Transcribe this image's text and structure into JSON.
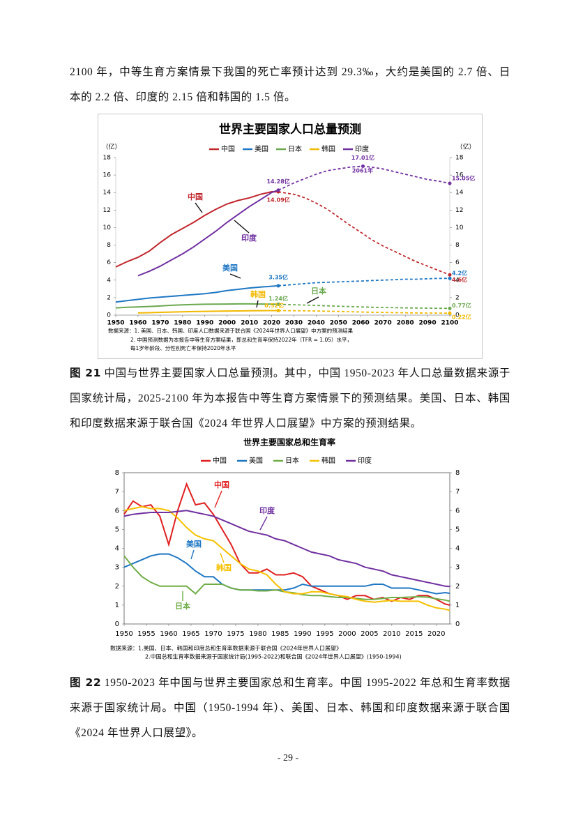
{
  "intro": "2100 年，中等生育方案情景下我国的死亡率预计达到 29.3‰，大约是美国的 2.7 倍、日本的 2.2 倍、印度的 2.15 倍和韩国的 1.5 倍。",
  "chart_data": [
    {
      "type": "line",
      "title": "世界主要国家人口总量预测",
      "ylabel": "（亿）",
      "y2label": "（亿）",
      "x": [
        1950,
        1955,
        1960,
        1965,
        1970,
        1975,
        1980,
        1985,
        1990,
        1995,
        2000,
        2005,
        2010,
        2015,
        2020,
        2023,
        2025,
        2030,
        2035,
        2040,
        2045,
        2050,
        2055,
        2061,
        2065,
        2070,
        2075,
        2080,
        2085,
        2090,
        2095,
        2100
      ],
      "xlim": [
        1950,
        2100
      ],
      "xticks": [
        1950,
        1960,
        1970,
        1980,
        1990,
        2000,
        2010,
        2020,
        2030,
        2040,
        2050,
        2060,
        2070,
        2080,
        2090,
        2100
      ],
      "ylim": [
        0,
        18
      ],
      "yticks": [
        0,
        2,
        4,
        6,
        8,
        10,
        12,
        14,
        16,
        18
      ],
      "y2lim": [
        0,
        18
      ],
      "y2ticks": [
        0,
        2,
        4,
        6,
        8,
        10,
        12,
        14,
        16,
        18
      ],
      "grid": false,
      "dashed_from": 2023,
      "series": [
        {
          "name": "中国",
          "color": "#c0272d",
          "values": [
            5.5,
            6.1,
            6.6,
            7.3,
            8.3,
            9.2,
            9.9,
            10.6,
            11.4,
            12.1,
            12.7,
            13.1,
            13.4,
            13.8,
            14.1,
            14.09,
            14.0,
            13.8,
            13.4,
            12.8,
            12.1,
            11.2,
            10.3,
            9.3,
            8.6,
            7.9,
            7.3,
            6.7,
            6.1,
            5.6,
            5.1,
            4.6
          ],
          "value_labels": [
            null,
            null,
            null,
            null,
            null,
            null,
            null,
            null,
            null,
            null,
            null,
            null,
            null,
            null,
            null,
            "14.09亿",
            null,
            null,
            null,
            null,
            null,
            null,
            null,
            null,
            null,
            null,
            null,
            null,
            null,
            null,
            null,
            "4.6亿"
          ]
        },
        {
          "name": "美国",
          "color": "#1f77c4",
          "values": [
            1.5,
            1.65,
            1.8,
            1.95,
            2.05,
            2.15,
            2.25,
            2.35,
            2.45,
            2.6,
            2.8,
            2.95,
            3.1,
            3.2,
            3.3,
            3.35,
            3.4,
            3.5,
            3.6,
            3.7,
            3.75,
            3.8,
            3.85,
            3.9,
            3.95,
            4.0,
            4.05,
            4.1,
            4.1,
            4.15,
            4.2,
            4.2
          ],
          "value_labels": [
            null,
            null,
            null,
            null,
            null,
            null,
            null,
            null,
            null,
            null,
            null,
            null,
            null,
            null,
            null,
            "3.35亿",
            null,
            null,
            null,
            null,
            null,
            null,
            null,
            null,
            null,
            null,
            null,
            null,
            null,
            null,
            null,
            "4.2亿"
          ]
        },
        {
          "name": "日本",
          "color": "#6aa84f",
          "values": [
            0.83,
            0.9,
            0.94,
            0.99,
            1.04,
            1.12,
            1.17,
            1.21,
            1.24,
            1.26,
            1.27,
            1.28,
            1.28,
            1.27,
            1.26,
            1.24,
            1.22,
            1.19,
            1.15,
            1.11,
            1.06,
            1.02,
            0.98,
            0.93,
            0.9,
            0.87,
            0.85,
            0.83,
            0.81,
            0.8,
            0.78,
            0.77
          ],
          "value_labels": [
            null,
            null,
            null,
            null,
            null,
            null,
            null,
            null,
            null,
            null,
            null,
            null,
            null,
            null,
            null,
            "1.24亿",
            null,
            null,
            null,
            null,
            null,
            null,
            null,
            null,
            null,
            null,
            null,
            null,
            null,
            null,
            null,
            "0.77亿"
          ]
        },
        {
          "name": "韩国",
          "color": "#f2b800",
          "values": [
            null,
            null,
            0.25,
            0.28,
            0.32,
            0.35,
            0.38,
            0.41,
            0.43,
            0.45,
            0.47,
            0.48,
            0.5,
            0.51,
            0.52,
            0.52,
            0.51,
            0.5,
            0.49,
            0.47,
            0.45,
            0.42,
            0.39,
            0.35,
            0.33,
            0.31,
            0.29,
            0.27,
            0.25,
            0.24,
            0.23,
            0.22
          ],
          "value_labels": [
            null,
            null,
            null,
            null,
            null,
            null,
            null,
            null,
            null,
            null,
            null,
            null,
            null,
            null,
            null,
            "0.52亿",
            null,
            null,
            null,
            null,
            null,
            null,
            null,
            null,
            null,
            null,
            null,
            null,
            null,
            null,
            null,
            "0.22亿"
          ]
        },
        {
          "name": "印度",
          "color": "#7030a0",
          "values": [
            null,
            null,
            4.5,
            5.0,
            5.6,
            6.3,
            7.0,
            7.8,
            8.7,
            9.6,
            10.6,
            11.5,
            12.4,
            13.2,
            14.0,
            14.28,
            14.5,
            15.1,
            15.6,
            16.1,
            16.5,
            16.7,
            16.9,
            17.01,
            16.9,
            16.7,
            16.4,
            16.1,
            15.8,
            15.5,
            15.3,
            15.05
          ],
          "value_labels": [
            null,
            null,
            null,
            null,
            null,
            null,
            null,
            null,
            null,
            null,
            null,
            null,
            null,
            null,
            null,
            "14.28亿",
            null,
            null,
            null,
            null,
            null,
            null,
            null,
            "17.01亿",
            null,
            null,
            null,
            null,
            null,
            null,
            null,
            "15.05亿"
          ]
        }
      ],
      "annotations": [
        "中国",
        "印度",
        "美国",
        "韩国",
        "日本",
        "2061年"
      ],
      "notes": [
        "数据来源：1. 美国、日本、韩国、印度人口数据来源于联合国《2024年世界人口展望》中方案的预测结果",
        "2. 中国预测数据为本报告中等生育方案结果，即总和生育率保持2022年（TFR = 1.05）水平，",
        "每1岁年龄段、分性别死亡率保持2020年水平"
      ]
    },
    {
      "type": "line",
      "title": "世界主要国家总和生育率",
      "x": [
        1950,
        1952,
        1954,
        1956,
        1958,
        1960,
        1962,
        1964,
        1966,
        1968,
        1970,
        1972,
        1974,
        1976,
        1978,
        1980,
        1982,
        1984,
        1986,
        1988,
        1990,
        1992,
        1994,
        1996,
        1998,
        2000,
        2002,
        2004,
        2006,
        2008,
        2010,
        2012,
        2014,
        2016,
        2018,
        2020,
        2022,
        2023
      ],
      "xlim": [
        1950,
        2023
      ],
      "xticks": [
        1950,
        1955,
        1960,
        1965,
        1970,
        1975,
        1980,
        1985,
        1990,
        1995,
        2000,
        2005,
        2010,
        2015,
        2020
      ],
      "ylim": [
        0,
        8
      ],
      "yticks": [
        0,
        1,
        2,
        3,
        4,
        5,
        6,
        7,
        8
      ],
      "y2lim": [
        0,
        8
      ],
      "y2ticks": [
        0,
        1,
        2,
        3,
        4,
        5,
        6,
        7,
        8
      ],
      "grid": false,
      "frame": true,
      "series": [
        {
          "name": "中国",
          "color": "#e02020",
          "values": [
            5.8,
            6.5,
            6.2,
            6.3,
            5.7,
            4.2,
            6.0,
            7.4,
            6.3,
            6.4,
            5.8,
            5.0,
            4.2,
            3.2,
            2.7,
            2.7,
            2.9,
            2.6,
            2.6,
            2.7,
            2.5,
            2.0,
            1.8,
            1.6,
            1.5,
            1.3,
            1.5,
            1.5,
            1.3,
            1.4,
            1.2,
            1.4,
            1.3,
            1.5,
            1.5,
            1.3,
            1.05,
            1.0
          ]
        },
        {
          "name": "美国",
          "color": "#1f77c4",
          "values": [
            3.0,
            3.2,
            3.4,
            3.6,
            3.7,
            3.7,
            3.5,
            3.2,
            2.8,
            2.5,
            2.5,
            2.1,
            1.9,
            1.8,
            1.8,
            1.8,
            1.8,
            1.8,
            1.8,
            1.9,
            2.1,
            2.0,
            2.0,
            2.0,
            2.0,
            2.0,
            2.0,
            2.0,
            2.1,
            2.1,
            1.9,
            1.9,
            1.9,
            1.8,
            1.7,
            1.6,
            1.66,
            1.62
          ]
        },
        {
          "name": "日本",
          "color": "#70ad47",
          "values": [
            3.6,
            3.0,
            2.5,
            2.2,
            2.0,
            2.0,
            2.0,
            2.0,
            1.6,
            2.1,
            2.1,
            2.1,
            1.9,
            1.8,
            1.8,
            1.75,
            1.75,
            1.8,
            1.7,
            1.65,
            1.55,
            1.5,
            1.5,
            1.45,
            1.4,
            1.4,
            1.35,
            1.3,
            1.3,
            1.35,
            1.4,
            1.4,
            1.42,
            1.44,
            1.42,
            1.33,
            1.26,
            1.2
          ]
        },
        {
          "name": "韩国",
          "color": "#f5c000",
          "values": [
            6.0,
            6.1,
            6.2,
            6.1,
            6.1,
            6.0,
            5.6,
            5.1,
            4.7,
            4.5,
            4.4,
            4.0,
            3.6,
            3.2,
            2.9,
            2.8,
            2.6,
            2.1,
            1.7,
            1.6,
            1.6,
            1.7,
            1.7,
            1.6,
            1.5,
            1.45,
            1.3,
            1.2,
            1.15,
            1.2,
            1.25,
            1.2,
            1.2,
            1.2,
            1.0,
            0.85,
            0.78,
            0.72
          ]
        },
        {
          "name": "印度",
          "color": "#7030a0",
          "values": [
            5.7,
            5.8,
            5.85,
            5.9,
            5.9,
            5.9,
            5.95,
            6.0,
            5.9,
            5.8,
            5.7,
            5.5,
            5.3,
            5.1,
            4.9,
            4.8,
            4.7,
            4.5,
            4.4,
            4.2,
            4.0,
            3.8,
            3.7,
            3.6,
            3.4,
            3.3,
            3.2,
            3.0,
            2.9,
            2.8,
            2.6,
            2.5,
            2.4,
            2.3,
            2.2,
            2.1,
            2.0,
            1.98
          ]
        }
      ],
      "annotations": [
        "中国",
        "美国",
        "韩国",
        "日本",
        "印度"
      ],
      "notes": [
        "数据来源：1.美国、日本、韩国和印度总和生育率数据来源于联合国《2024年世界人口展望》",
        "2.中国总和生育率数据来源于国家统计局(1995-2022)和联合国《2024年世界人口展望》(1950-1994)"
      ]
    }
  ],
  "captions": [
    {
      "label": "图 21",
      "text": " 中国与世界主要国家人口总量预测。其中，中国 1950-2023 年人口总量数据来源于国家统计局，2025-2100 年为本报告中等生育方案情景下的预测结果。美国、日本、韩国和印度数据来源于联合国《2024 年世界人口展望》中方案的预测结果。"
    },
    {
      "label": "图 22",
      "text": " 1950-2023 年中国与世界主要国家总和生育率。中国 1995-2022 年总和生育率数据来源于国家统计局。中国（1950-1994 年）、美国、日本、韩国和印度数据来源于联合国《2024 年世界人口展望》。"
    }
  ],
  "page_number": "- 29 -"
}
